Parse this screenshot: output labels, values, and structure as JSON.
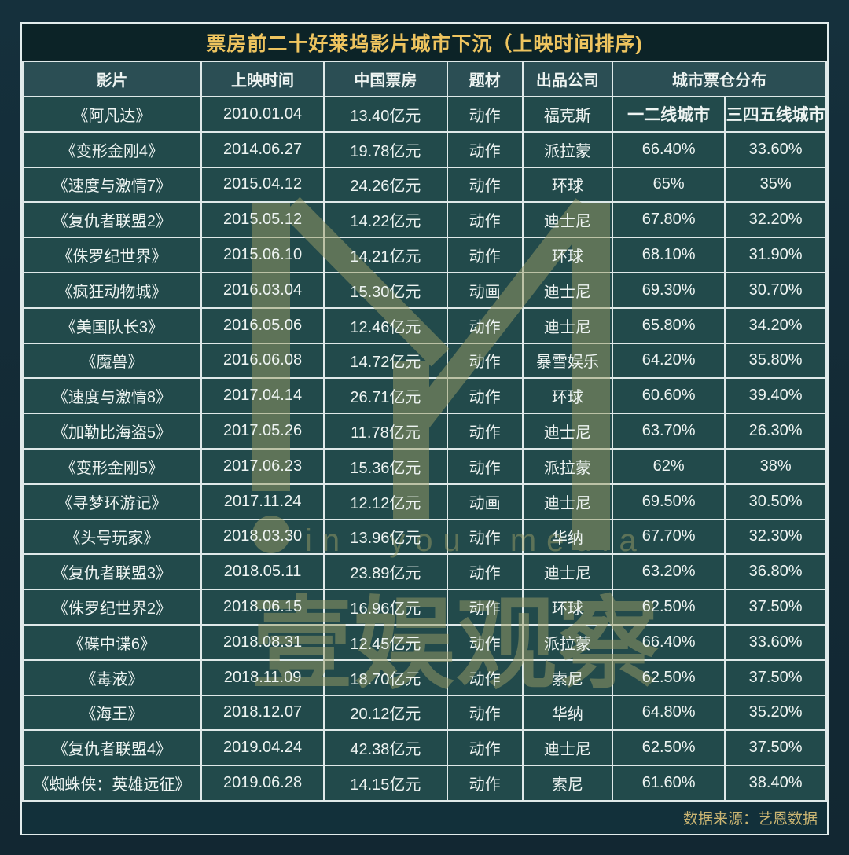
{
  "title": "票房前二十好莱坞影片城市下沉（上映时间排序)",
  "header": {
    "columns": [
      "影片",
      "上映时间",
      "中国票房",
      "题材",
      "出品公司",
      "城市票仓分布"
    ]
  },
  "subheader": [
    "一二线城市",
    "三四五线城市"
  ],
  "chart_data": {
    "type": "table",
    "title": "票房前二十好莱坞影片城市下沉（上映时间排序)",
    "columns": [
      "影片",
      "上映时间",
      "中国票房",
      "题材",
      "出品公司",
      "一二线城市",
      "三四五线城市"
    ],
    "rows": [
      [
        "《阿凡达》",
        "2010.01.04",
        "13.40亿元",
        "动作",
        "福克斯",
        "一二线城市",
        "三四五线城市"
      ],
      [
        "《变形金刚4》",
        "2014.06.27",
        "19.78亿元",
        "动作",
        "派拉蒙",
        "66.40%",
        "33.60%"
      ],
      [
        "《速度与激情7》",
        "2015.04.12",
        "24.26亿元",
        "动作",
        "环球",
        "65%",
        "35%"
      ],
      [
        "《复仇者联盟2》",
        "2015.05.12",
        "14.22亿元",
        "动作",
        "迪士尼",
        "67.80%",
        "32.20%"
      ],
      [
        "《侏罗纪世界》",
        "2015.06.10",
        "14.21亿元",
        "动作",
        "环球",
        "68.10%",
        "31.90%"
      ],
      [
        "《疯狂动物城》",
        "2016.03.04",
        "15.30亿元",
        "动画",
        "迪士尼",
        "69.30%",
        "30.70%"
      ],
      [
        "《美国队长3》",
        "2016.05.06",
        "12.46亿元",
        "动作",
        "迪士尼",
        "65.80%",
        "34.20%"
      ],
      [
        "《魔兽》",
        "2016.06.08",
        "14.72亿元",
        "动作",
        "暴雪娱乐",
        "64.20%",
        "35.80%"
      ],
      [
        "《速度与激情8》",
        "2017.04.14",
        "26.71亿元",
        "动作",
        "环球",
        "60.60%",
        "39.40%"
      ],
      [
        "《加勒比海盗5》",
        "2017.05.26",
        "11.78亿元",
        "动作",
        "迪士尼",
        "63.70%",
        "26.30%"
      ],
      [
        "《变形金刚5》",
        "2017.06.23",
        "15.36亿元",
        "动作",
        "派拉蒙",
        "62%",
        "38%"
      ],
      [
        "《寻梦环游记》",
        "2017.11.24",
        "12.12亿元",
        "动画",
        "迪士尼",
        "69.50%",
        "30.50%"
      ],
      [
        "《头号玩家》",
        "2018.03.30",
        "13.96亿元",
        "动作",
        "华纳",
        "67.70%",
        "32.30%"
      ],
      [
        "《复仇者联盟3》",
        "2018.05.11",
        "23.89亿元",
        "动作",
        "迪士尼",
        "63.20%",
        "36.80%"
      ],
      [
        "《侏罗纪世界2》",
        "2018.06.15",
        "16.96亿元",
        "动作",
        "环球",
        "62.50%",
        "37.50%"
      ],
      [
        "《碟中谍6》",
        "2018.08.31",
        "12.45亿元",
        "动作",
        "派拉蒙",
        "66.40%",
        "33.60%"
      ],
      [
        "《毒液》",
        "2018.11.09",
        "18.70亿元",
        "动作",
        "索尼",
        "62.50%",
        "37.50%"
      ],
      [
        "《海王》",
        "2018.12.07",
        "20.12亿元",
        "动作",
        "华纳",
        "64.80%",
        "35.20%"
      ],
      [
        "《复仇者联盟4》",
        "2019.04.24",
        "42.38亿元",
        "动作",
        "迪士尼",
        "62.50%",
        "37.50%"
      ],
      [
        "《蜘蛛侠：英雄远征》",
        "2019.06.28",
        "14.15亿元",
        "动作",
        "索尼",
        "61.60%",
        "38.40%"
      ]
    ]
  },
  "footer": {
    "source": "数据来源：艺恩数据"
  },
  "watermark": {
    "logo": "in-you-media-m-logo",
    "line1": "in you media",
    "line2": "壹娱观察"
  },
  "colors": {
    "page_bg": "#142b36",
    "title_bg": "#0c2327",
    "header_bg": "#2b4e54",
    "cell_bg": "#224a4b",
    "footer_bg": "#12303a",
    "border": "#dfe9e9",
    "title_text": "#eec45f",
    "cell_text": "#eef4f2",
    "source_text": "#c9b472",
    "watermark": "#9a9d66"
  }
}
